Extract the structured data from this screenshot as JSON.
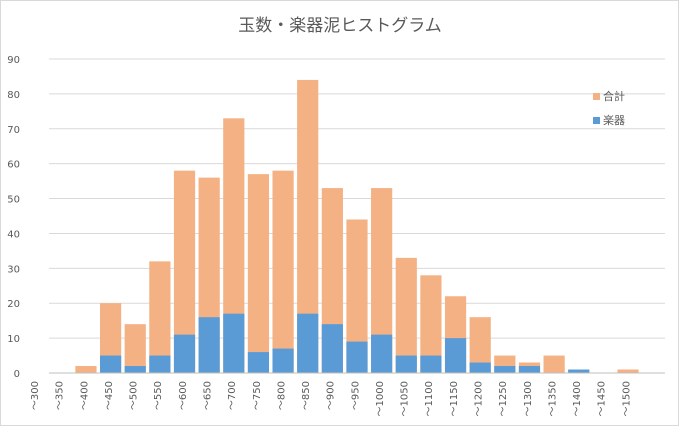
{
  "chart_data": {
    "type": "bar",
    "title": "玉数・楽器泥ヒストグラム",
    "categories": [
      "～300",
      "～350",
      "～400",
      "～450",
      "～500",
      "～550",
      "～600",
      "～650",
      "～700",
      "～750",
      "～800",
      "～850",
      "～900",
      "～950",
      "～1000",
      "～1050",
      "～1100",
      "～1150",
      "～1200",
      "～1250",
      "～1300",
      "～1350",
      "～1400",
      "～1450",
      "～1500"
    ],
    "series": [
      {
        "name": "合計",
        "color": "#f4b183",
        "values": [
          0,
          2,
          20,
          14,
          32,
          58,
          56,
          73,
          57,
          58,
          84,
          53,
          44,
          53,
          33,
          28,
          22,
          16,
          5,
          3,
          5,
          1,
          0,
          1,
          0
        ]
      },
      {
        "name": "楽器",
        "color": "#5b9bd5",
        "values": [
          0,
          0,
          5,
          2,
          5,
          11,
          16,
          17,
          6,
          7,
          17,
          14,
          9,
          11,
          5,
          5,
          10,
          3,
          2,
          2,
          0,
          1,
          0,
          0,
          0
        ]
      }
    ],
    "ylim": [
      0,
      90
    ],
    "yticks": [
      0,
      10,
      20,
      30,
      40,
      50,
      60,
      70,
      80,
      90
    ],
    "grid": true,
    "legend": "right",
    "xlabel": "",
    "ylabel": ""
  }
}
